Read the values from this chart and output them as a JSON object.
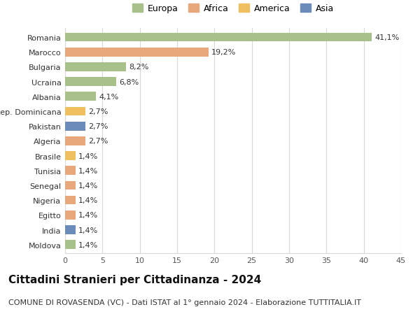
{
  "countries": [
    "Romania",
    "Marocco",
    "Bulgaria",
    "Ucraina",
    "Albania",
    "Rep. Dominicana",
    "Pakistan",
    "Algeria",
    "Brasile",
    "Tunisia",
    "Senegal",
    "Nigeria",
    "Egitto",
    "India",
    "Moldova"
  ],
  "values": [
    41.1,
    19.2,
    8.2,
    6.8,
    4.1,
    2.7,
    2.7,
    2.7,
    1.4,
    1.4,
    1.4,
    1.4,
    1.4,
    1.4,
    1.4
  ],
  "labels": [
    "41,1%",
    "19,2%",
    "8,2%",
    "6,8%",
    "4,1%",
    "2,7%",
    "2,7%",
    "2,7%",
    "1,4%",
    "1,4%",
    "1,4%",
    "1,4%",
    "1,4%",
    "1,4%",
    "1,4%"
  ],
  "continents": [
    "Europa",
    "Africa",
    "Europa",
    "Europa",
    "Europa",
    "America",
    "Asia",
    "Africa",
    "America",
    "Africa",
    "Africa",
    "Africa",
    "Africa",
    "Asia",
    "Europa"
  ],
  "colors": {
    "Europa": "#a8c08a",
    "Africa": "#e8a87c",
    "America": "#f0c060",
    "Asia": "#6b8cba"
  },
  "legend_order": [
    "Europa",
    "Africa",
    "America",
    "Asia"
  ],
  "legend_colors": [
    "#a8c08a",
    "#e8a87c",
    "#f0c060",
    "#6b8cba"
  ],
  "title": "Cittadini Stranieri per Cittadinanza - 2024",
  "subtitle": "COMUNE DI ROVASENDA (VC) - Dati ISTAT al 1° gennaio 2024 - Elaborazione TUTTITALIA.IT",
  "xlim": [
    0,
    45
  ],
  "xticks": [
    0,
    5,
    10,
    15,
    20,
    25,
    30,
    35,
    40,
    45
  ],
  "background_color": "#ffffff",
  "grid_color": "#d8d8d8",
  "bar_height": 0.6,
  "title_fontsize": 11,
  "subtitle_fontsize": 8,
  "label_fontsize": 8,
  "tick_fontsize": 8,
  "legend_fontsize": 9
}
